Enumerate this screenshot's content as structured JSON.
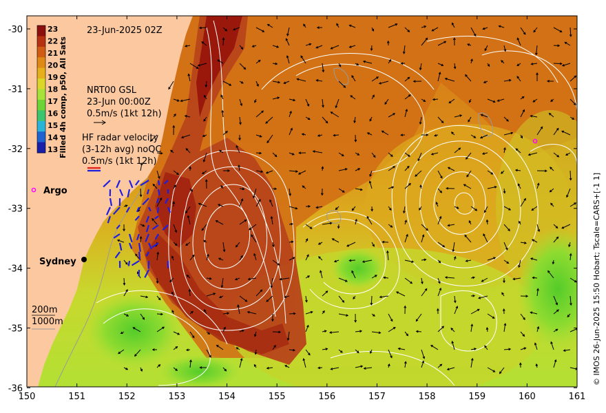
{
  "map": {
    "timestamp": "23-Jun-2025 02Z",
    "colorbar": {
      "title": "Filled 4h comp, p50, All Sats",
      "ticks": [
        "23",
        "22",
        "21",
        "20",
        "19",
        "18",
        "17",
        "16",
        "15",
        "14",
        "13"
      ],
      "colors": [
        "#8b0f0c",
        "#b6310f",
        "#cf5c12",
        "#df8a16",
        "#e6b01c",
        "#dcd62a",
        "#a6e23a",
        "#6cd437",
        "#3cc46f",
        "#2ab3d8",
        "#1d62cf",
        "#1a1fa8"
      ]
    },
    "altimetry": {
      "line1": "NRT00 GSL",
      "line2": "23-Jun 00:00Z",
      "line3": "0.5m/s (1kt 12h)"
    },
    "radar": {
      "line1": "HF radar velocity",
      "line2": "(3-12h avg) noQC",
      "line3": "0.5m/s (1kt 12h)"
    },
    "places": {
      "argo": "Argo",
      "sydney": "Sydney"
    },
    "isobaths": {
      "shallow": "200m",
      "deep": "1000m"
    },
    "axes": {
      "x_ticks": [
        "150",
        "151",
        "152",
        "153",
        "154",
        "155",
        "156",
        "157",
        "158",
        "159",
        "160",
        "161"
      ],
      "y_ticks": [
        "-30",
        "-31",
        "-32",
        "-33",
        "-34",
        "-35",
        "-36"
      ]
    },
    "credit": "© IMOS 26-Jun-2025 15:50 Hobart; Tscale=CARS+[-1 1]",
    "colors": {
      "land": "#fbc8a0",
      "warm_core": "#a2260e",
      "ocean_mid": "#d77b16",
      "ocean_cool": "#b9e03a",
      "contour": "#ffffff",
      "radar_arrow": "#1e1ee0",
      "argo": "#ff00ff"
    }
  }
}
